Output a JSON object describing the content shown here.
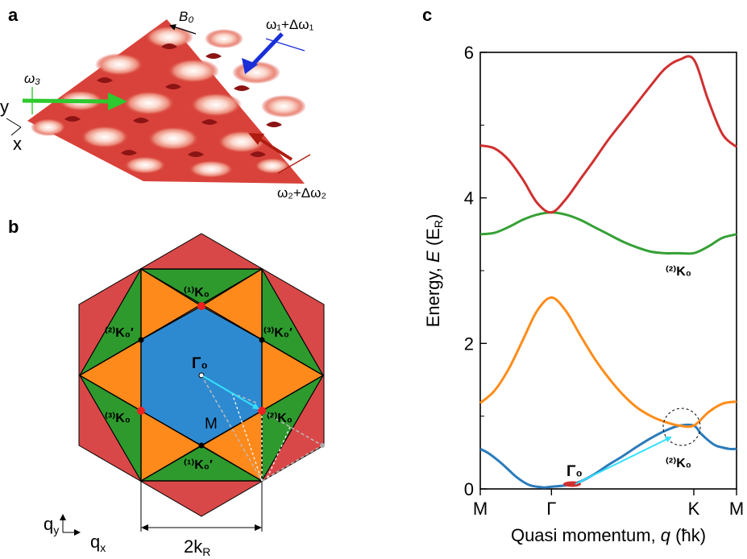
{
  "panels": {
    "a": {
      "label": "a",
      "field_label": "B₀",
      "beam1_label": "ω₁+Δω₁",
      "beam2_label": "ω₂+Δω₂",
      "beam3_label": "ω₃",
      "axis_y": "y",
      "axis_x": "x"
    },
    "b": {
      "label": "b",
      "gamma": "Γ₀",
      "m": "M",
      "k1": "⁽¹⁾K₀",
      "k1p": "⁽¹⁾K₀′",
      "k2": "⁽²⁾K₀",
      "k2p": "⁽²⁾K₀′",
      "k3": "⁽³⁾K₀",
      "k3p": "⁽³⁾K₀′",
      "scale_label": "2k",
      "scale_sub": "R",
      "qy_main": "q",
      "qy_sub": "y",
      "qx_main": "q",
      "qx_sub": "x"
    },
    "c": {
      "label": "c",
      "ylabel_prefix": "Energy, ",
      "ylabel_var": "E",
      "ylabel_unit": " (E",
      "ylabel_unit_sub": "R",
      "ylabel_close": ")",
      "xlabel_prefix": "Quasi momentum, ",
      "xlabel_var": "q",
      "xlabel_unit": " (ħk)",
      "gamma_label": "Γ₀",
      "k_label_upper": "⁽²⁾K₀",
      "k_label_lower": "⁽²⁾K₀"
    }
  },
  "colors": {
    "band_red": "#d03030",
    "band_green": "#35a035",
    "band_orange": "#ff8c1a",
    "band_blue": "#2b7bba",
    "zone_blue": "#2e8ad0",
    "zone_orange": "#ff8a1c",
    "zone_green": "#2e9a2e",
    "zone_red": "#d94848",
    "arrow_cyan": "#33e0ff"
  },
  "chart_data": {
    "type": "line",
    "x_ticks": [
      "M",
      "Γ",
      "K",
      "M"
    ],
    "yticks": [
      "0",
      "2",
      "4",
      "6"
    ],
    "ylim": [
      0,
      6
    ],
    "series": [
      {
        "x": [
          0,
          0.1,
          0.2,
          0.3,
          0.4,
          0.5,
          0.6,
          0.7,
          0.8,
          0.9,
          1.0,
          1.2,
          1.4,
          1.6,
          1.8,
          2.0,
          2.2,
          2.4,
          2.6,
          2.8,
          3.0,
          3.1,
          3.2,
          3.3,
          3.4,
          3.5,
          3.6
        ],
        "values": [
          0.55,
          0.5,
          0.43,
          0.35,
          0.26,
          0.17,
          0.1,
          0.05,
          0.03,
          0.02,
          0.03,
          0.05,
          0.1,
          0.2,
          0.33,
          0.45,
          0.58,
          0.7,
          0.8,
          0.87,
          0.87,
          0.76,
          0.67,
          0.6,
          0.57,
          0.55,
          0.55
        ]
      },
      {
        "x": [
          0,
          0.2,
          0.4,
          0.6,
          0.8,
          1.0,
          1.2,
          1.4,
          1.6,
          1.8,
          2.0,
          2.2,
          2.4,
          2.6,
          2.8,
          3.0,
          3.2,
          3.4,
          3.6
        ],
        "values": [
          1.18,
          1.35,
          1.65,
          2.05,
          2.45,
          2.63,
          2.45,
          2.12,
          1.8,
          1.53,
          1.3,
          1.12,
          1.0,
          0.92,
          0.87,
          0.87,
          1.05,
          1.17,
          1.2
        ]
      },
      {
        "x": [
          0,
          0.2,
          0.4,
          0.6,
          0.8,
          1.0,
          1.2,
          1.4,
          1.6,
          1.8,
          2.0,
          2.2,
          2.4,
          2.6,
          2.8,
          3.0,
          3.2,
          3.4,
          3.6
        ],
        "values": [
          3.5,
          3.52,
          3.6,
          3.7,
          3.77,
          3.8,
          3.77,
          3.7,
          3.6,
          3.5,
          3.4,
          3.32,
          3.26,
          3.24,
          3.24,
          3.24,
          3.33,
          3.45,
          3.5
        ]
      },
      {
        "x": [
          0,
          0.2,
          0.4,
          0.6,
          0.8,
          1.0,
          1.2,
          1.4,
          1.6,
          1.8,
          2.0,
          2.2,
          2.4,
          2.6,
          2.8,
          3.0,
          3.2,
          3.4,
          3.6
        ],
        "values": [
          4.72,
          4.68,
          4.52,
          4.25,
          3.93,
          3.8,
          3.98,
          4.25,
          4.52,
          4.8,
          5.05,
          5.3,
          5.55,
          5.78,
          5.9,
          5.9,
          5.35,
          4.88,
          4.7
        ]
      }
    ]
  }
}
